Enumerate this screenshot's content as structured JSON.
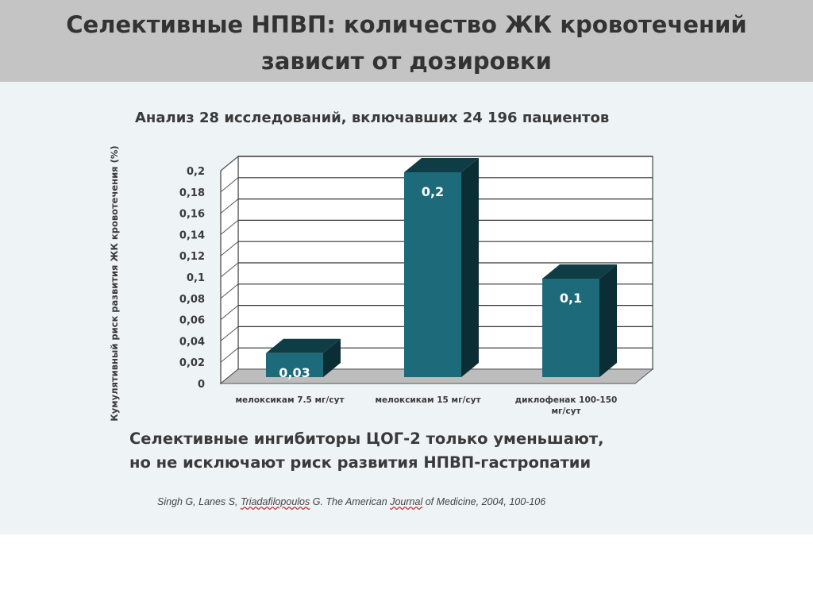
{
  "slide": {
    "title_line1": "Селективные НПВП: количество ЖК кровотечений",
    "title_line2": "зависит от дозировки",
    "subtitle": "Анализ 28 исследований, включавших 24 196 пациентов",
    "conclusion_line1": "Селективные ингибиторы ЦОГ-2 только уменьшают,",
    "conclusion_line2": "но не исключают риск развития НПВП-гастропатии",
    "citation_part1": "Singh G, Lanes S, ",
    "citation_part2": "Triadafilopoulos",
    "citation_part3": " G. The American ",
    "citation_part4": "Journal",
    "citation_part5": " of Medicine, 2004, 100-106"
  },
  "chart_data": {
    "type": "bar",
    "ylabel": "Кумулятивный риск развития ЖК кровотечения   (%)",
    "categories": [
      "мелоксикам 7.5 мг/сут",
      "мелоксикам 15 мг/сут",
      "диклофенак 100-150 мг/сут"
    ],
    "values": [
      0.03,
      0.2,
      0.1
    ],
    "value_labels": [
      "0,03",
      "0,2",
      "0,1"
    ],
    "ylim": [
      0,
      0.2
    ],
    "yticks": [
      0,
      0.02,
      0.04,
      0.06,
      0.08,
      0.1,
      0.12,
      0.14,
      0.16,
      0.18,
      0.2
    ],
    "ytick_labels": [
      "0",
      "0,02",
      "0,04",
      "0,06",
      "0,08",
      "0,1",
      "0,12",
      "0,14",
      "0,16",
      "0,18",
      "0,2"
    ],
    "grid": true,
    "bar_color": "#1d6b7a",
    "bar_top_color": "#0f3d46",
    "bar_side_color": "#0b2e35"
  }
}
